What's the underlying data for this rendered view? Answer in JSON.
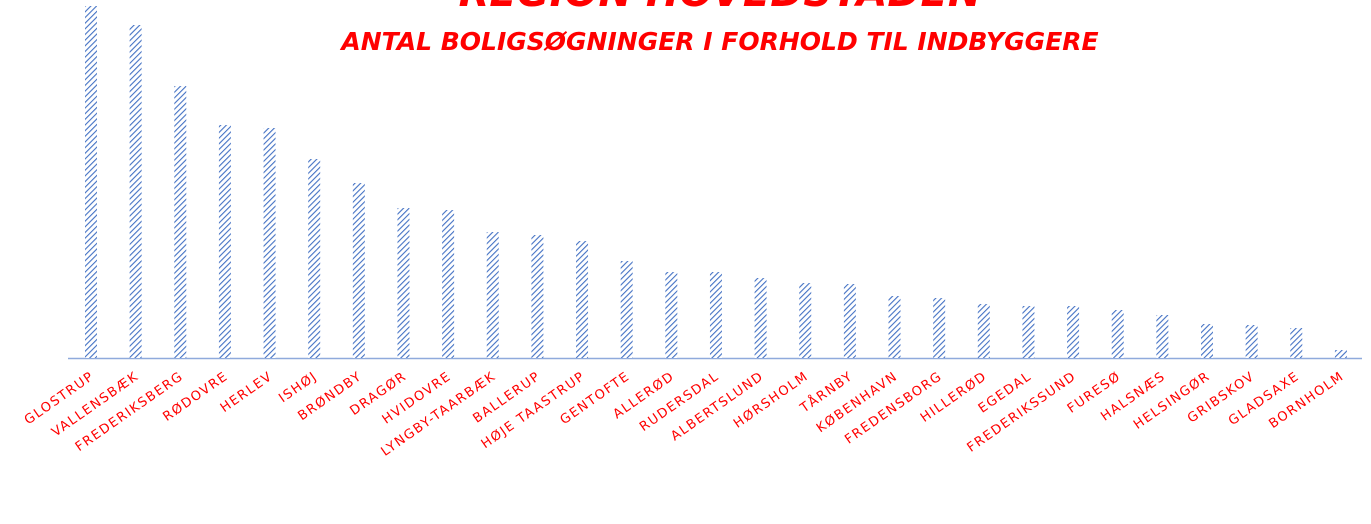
{
  "chart_data": {
    "type": "bar",
    "title": "REGION HOVEDSTADEN",
    "subtitle": "ANTAL BOLIGSØGNINGER I FORHOLD TIL INDBYGGERE",
    "categories": [
      "GLOSTRUP",
      "VALLENSBÆK",
      "FREDERIKSBERG",
      "RØDOVRE",
      "HERLEV",
      "ISHØJ",
      "BRØNDBY",
      "DRAGØR",
      "HVIDOVRE",
      "LYNGBY-TAARBÆK",
      "BALLERUP",
      "HØJE TAASTRUP",
      "GENTOFTE",
      "ALLERØD",
      "RUDERSDAL",
      "ALBERTSLUND",
      "HØRSHOLM",
      "TÅRNBY",
      "KØBENHAVN",
      "FREDENSBORG",
      "HILLERØD",
      "EGEDAL",
      "FREDERIKSSUND",
      "FURESØ",
      "HALSNÆS",
      "HELSINGØR",
      "GRIBSKOV",
      "GLADSAXE",
      "BORNHOLM"
    ],
    "values": [
      352,
      333,
      272,
      233,
      230,
      199,
      175,
      150,
      148,
      126,
      123,
      117,
      97,
      86,
      86,
      80,
      75,
      74,
      62,
      60,
      54,
      52,
      52,
      48,
      43,
      34,
      33,
      30,
      8
    ],
    "color": "#4472c4"
  }
}
